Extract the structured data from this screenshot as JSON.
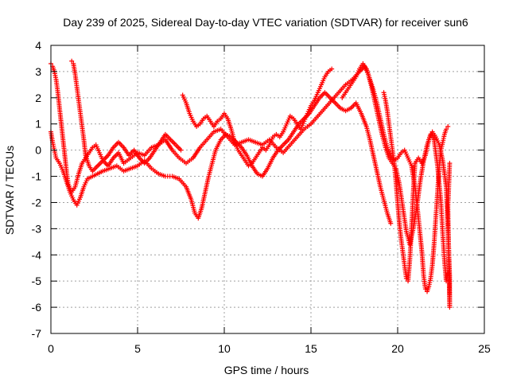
{
  "chart_data": {
    "type": "scatter",
    "title": "Day 239 of 2025, Sidereal Day-to-day VTEC variation (SDTVAR) for receiver sun6",
    "xlabel": "GPS time / hours",
    "ylabel": "SDTVAR / TECUs",
    "xlim": [
      0,
      25
    ],
    "ylim": [
      -7,
      4
    ],
    "xticks": [
      0,
      5,
      10,
      15,
      20,
      25
    ],
    "yticks": [
      -7,
      -6,
      -5,
      -4,
      -3,
      -2,
      -1,
      0,
      1,
      2,
      3,
      4
    ],
    "grid": true,
    "marker": "plus",
    "color": "#ff0000",
    "series": [
      {
        "points": [
          [
            0.0,
            0.7
          ],
          [
            0.1,
            0.3
          ],
          [
            0.2,
            0.0
          ],
          [
            0.3,
            -0.3
          ],
          [
            0.5,
            -0.5
          ],
          [
            0.7,
            -0.8
          ],
          [
            0.9,
            -1.2
          ],
          [
            1.1,
            -1.6
          ],
          [
            1.3,
            -1.9
          ],
          [
            1.5,
            -2.1
          ],
          [
            1.7,
            -1.8
          ],
          [
            1.9,
            -1.4
          ],
          [
            2.1,
            -1.1
          ],
          [
            2.4,
            -1.0
          ],
          [
            2.7,
            -0.9
          ],
          [
            3.0,
            -0.8
          ],
          [
            3.4,
            -0.7
          ],
          [
            3.8,
            -0.6
          ],
          [
            4.2,
            -0.8
          ],
          [
            4.6,
            -0.7
          ],
          [
            5.0,
            -0.6
          ],
          [
            5.4,
            -0.4
          ],
          [
            5.8,
            -0.7
          ],
          [
            6.2,
            -0.9
          ],
          [
            6.6,
            -1.0
          ],
          [
            7.0,
            -1.0
          ],
          [
            7.4,
            -1.1
          ],
          [
            7.8,
            -1.4
          ],
          [
            8.1,
            -1.9
          ],
          [
            8.3,
            -2.4
          ],
          [
            8.5,
            -2.6
          ],
          [
            8.7,
            -2.2
          ],
          [
            8.9,
            -1.6
          ],
          [
            9.1,
            -1.0
          ],
          [
            9.3,
            -0.5
          ],
          [
            9.5,
            0.0
          ],
          [
            9.8,
            0.4
          ],
          [
            10.1,
            0.6
          ],
          [
            10.4,
            0.5
          ],
          [
            10.7,
            0.3
          ],
          [
            11.0,
            0.1
          ],
          [
            11.3,
            -0.2
          ],
          [
            11.6,
            -0.6
          ],
          [
            11.9,
            -0.9
          ],
          [
            12.2,
            -1.0
          ],
          [
            12.5,
            -0.7
          ],
          [
            12.8,
            -0.3
          ],
          [
            13.1,
            0.0
          ],
          [
            13.4,
            0.2
          ],
          [
            13.7,
            0.4
          ],
          [
            14.0,
            0.7
          ],
          [
            14.3,
            1.0
          ],
          [
            14.6,
            1.2
          ],
          [
            14.9,
            1.4
          ],
          [
            15.2,
            1.7
          ],
          [
            15.5,
            2.0
          ],
          [
            15.8,
            2.2
          ],
          [
            16.1,
            2.0
          ],
          [
            16.4,
            1.8
          ],
          [
            16.7,
            1.6
          ],
          [
            17.0,
            1.5
          ],
          [
            17.3,
            1.6
          ],
          [
            17.6,
            1.8
          ],
          [
            17.9,
            1.4
          ],
          [
            18.2,
            0.9
          ],
          [
            18.4,
            0.4
          ],
          [
            18.6,
            -0.2
          ],
          [
            18.8,
            -0.8
          ],
          [
            19.0,
            -1.4
          ],
          [
            19.2,
            -1.9
          ],
          [
            19.4,
            -2.4
          ],
          [
            19.6,
            -2.8
          ]
        ]
      },
      {
        "points": [
          [
            0.0,
            3.3
          ],
          [
            0.1,
            3.2
          ],
          [
            0.2,
            3.0
          ],
          [
            0.3,
            2.7
          ],
          [
            0.4,
            2.2
          ],
          [
            0.5,
            1.6
          ],
          [
            0.6,
            1.0
          ],
          [
            0.7,
            0.4
          ],
          [
            0.8,
            -0.2
          ],
          [
            0.9,
            -0.8
          ],
          [
            1.0,
            -1.3
          ],
          [
            1.2,
            -1.6
          ],
          [
            1.4,
            -1.4
          ],
          [
            1.6,
            -0.9
          ],
          [
            1.8,
            -0.5
          ],
          [
            2.0,
            -0.3
          ],
          [
            2.2,
            -0.1
          ],
          [
            2.4,
            0.1
          ],
          [
            2.6,
            0.2
          ],
          [
            2.8,
            -0.1
          ],
          [
            3.0,
            -0.4
          ],
          [
            3.3,
            -0.6
          ],
          [
            3.6,
            -0.3
          ],
          [
            3.9,
            -0.1
          ],
          [
            4.2,
            -0.5
          ],
          [
            4.6,
            -0.3
          ],
          [
            5.0,
            -0.1
          ],
          [
            5.4,
            -0.2
          ],
          [
            5.8,
            0.1
          ],
          [
            6.2,
            0.2
          ],
          [
            6.6,
            0.4
          ],
          [
            7.0,
            0.0
          ],
          [
            7.4,
            -0.3
          ],
          [
            7.8,
            -0.5
          ],
          [
            8.2,
            -0.3
          ],
          [
            8.6,
            0.1
          ],
          [
            9.0,
            0.4
          ],
          [
            9.4,
            0.7
          ],
          [
            9.8,
            0.8
          ],
          [
            10.2,
            0.5
          ],
          [
            10.6,
            0.2
          ],
          [
            11.0,
            0.3
          ],
          [
            11.4,
            0.4
          ],
          [
            11.8,
            0.3
          ],
          [
            12.2,
            0.2
          ],
          [
            12.6,
            0.4
          ],
          [
            13.0,
            0.1
          ],
          [
            13.4,
            -0.1
          ],
          [
            13.8,
            0.2
          ],
          [
            14.2,
            0.5
          ],
          [
            14.6,
            0.8
          ],
          [
            15.0,
            1.0
          ],
          [
            15.4,
            1.3
          ],
          [
            15.8,
            1.6
          ],
          [
            16.2,
            1.9
          ],
          [
            16.6,
            2.2
          ],
          [
            17.0,
            2.5
          ],
          [
            17.4,
            2.7
          ],
          [
            17.8,
            3.0
          ],
          [
            18.1,
            3.2
          ],
          [
            18.3,
            2.9
          ],
          [
            18.5,
            2.4
          ],
          [
            18.7,
            1.8
          ],
          [
            18.9,
            1.2
          ],
          [
            19.1,
            0.6
          ],
          [
            19.3,
            0.1
          ],
          [
            19.5,
            -0.3
          ],
          [
            19.7,
            -0.5
          ],
          [
            19.9,
            -0.7
          ],
          [
            20.1,
            -1.3
          ],
          [
            20.3,
            -2.2
          ],
          [
            20.5,
            -3.1
          ],
          [
            20.7,
            -3.6
          ],
          [
            20.9,
            -3.0
          ],
          [
            21.1,
            -2.2
          ],
          [
            21.3,
            -1.2
          ],
          [
            21.5,
            -0.4
          ],
          [
            21.7,
            0.2
          ],
          [
            21.9,
            0.6
          ],
          [
            22.1,
            0.4
          ],
          [
            22.3,
            -0.6
          ],
          [
            22.5,
            -2.0
          ],
          [
            22.6,
            -3.2
          ],
          [
            22.7,
            -4.2
          ],
          [
            22.8,
            -5.0
          ],
          [
            22.9,
            -4.7
          ]
        ]
      },
      {
        "points": [
          [
            1.2,
            3.4
          ],
          [
            1.3,
            3.3
          ],
          [
            1.4,
            2.9
          ],
          [
            1.5,
            2.4
          ],
          [
            1.6,
            1.9
          ],
          [
            1.7,
            1.4
          ],
          [
            1.8,
            0.9
          ],
          [
            1.9,
            0.4
          ],
          [
            2.0,
            -0.2
          ],
          [
            2.2,
            -0.6
          ],
          [
            2.4,
            -0.8
          ],
          [
            2.7,
            -0.6
          ],
          [
            3.0,
            -0.4
          ],
          [
            3.3,
            -0.2
          ],
          [
            3.6,
            0.1
          ],
          [
            3.9,
            0.3
          ],
          [
            4.2,
            0.1
          ],
          [
            4.5,
            -0.2
          ],
          [
            4.8,
            0.0
          ],
          [
            5.1,
            -0.3
          ],
          [
            5.4,
            -0.5
          ],
          [
            5.7,
            -0.3
          ],
          [
            6.0,
            0.0
          ],
          [
            6.3,
            0.3
          ],
          [
            6.6,
            0.6
          ],
          [
            6.9,
            0.4
          ],
          [
            7.2,
            0.2
          ],
          [
            7.5,
            0.0
          ]
        ]
      },
      {
        "points": [
          [
            7.6,
            2.1
          ],
          [
            7.8,
            1.8
          ],
          [
            8.0,
            1.4
          ],
          [
            8.2,
            1.1
          ],
          [
            8.4,
            0.9
          ],
          [
            8.6,
            1.0
          ],
          [
            8.8,
            1.2
          ],
          [
            9.0,
            1.3
          ],
          [
            9.2,
            1.1
          ],
          [
            9.4,
            0.9
          ],
          [
            9.6,
            1.1
          ],
          [
            9.8,
            1.2
          ],
          [
            10.0,
            1.4
          ],
          [
            10.2,
            1.2
          ],
          [
            10.4,
            0.8
          ],
          [
            10.6,
            0.3
          ],
          [
            10.8,
            0.0
          ],
          [
            11.0,
            -0.2
          ],
          [
            11.2,
            -0.4
          ],
          [
            11.4,
            -0.6
          ],
          [
            11.6,
            -0.5
          ],
          [
            11.8,
            -0.3
          ],
          [
            12.0,
            -0.1
          ],
          [
            12.2,
            0.1
          ],
          [
            12.4,
            0.0
          ],
          [
            12.6,
            0.2
          ],
          [
            12.8,
            0.5
          ],
          [
            13.0,
            0.6
          ],
          [
            13.2,
            0.5
          ],
          [
            13.4,
            0.7
          ],
          [
            13.6,
            1.0
          ],
          [
            13.8,
            1.3
          ],
          [
            14.0,
            1.2
          ],
          [
            14.2,
            1.0
          ],
          [
            14.4,
            0.8
          ],
          [
            14.6,
            1.1
          ],
          [
            14.8,
            1.4
          ],
          [
            15.0,
            1.7
          ],
          [
            15.2,
            1.9
          ],
          [
            15.4,
            2.2
          ],
          [
            15.6,
            2.5
          ],
          [
            15.8,
            2.8
          ],
          [
            16.0,
            3.0
          ],
          [
            16.2,
            3.1
          ]
        ]
      },
      {
        "points": [
          [
            16.8,
            2.0
          ],
          [
            17.0,
            2.2
          ],
          [
            17.2,
            2.4
          ],
          [
            17.4,
            2.6
          ],
          [
            17.6,
            2.8
          ],
          [
            17.8,
            3.1
          ],
          [
            18.0,
            3.3
          ],
          [
            18.2,
            3.1
          ],
          [
            18.4,
            2.7
          ],
          [
            18.6,
            2.3
          ],
          [
            18.8,
            1.8
          ],
          [
            19.0,
            1.2
          ],
          [
            19.2,
            0.6
          ],
          [
            19.4,
            0.1
          ],
          [
            19.6,
            -0.2
          ],
          [
            19.8,
            -0.4
          ],
          [
            20.0,
            -0.3
          ],
          [
            20.2,
            -0.1
          ],
          [
            20.4,
            0.0
          ],
          [
            20.6,
            -0.3
          ],
          [
            20.8,
            -0.6
          ],
          [
            21.0,
            -1.4
          ],
          [
            21.2,
            -2.6
          ],
          [
            21.4,
            -3.9
          ],
          [
            21.5,
            -4.8
          ],
          [
            21.6,
            -5.3
          ],
          [
            21.7,
            -5.4
          ],
          [
            21.8,
            -5.2
          ],
          [
            21.9,
            -4.9
          ],
          [
            22.0,
            -4.4
          ],
          [
            22.1,
            -3.6
          ],
          [
            22.2,
            -2.6
          ],
          [
            22.3,
            -1.6
          ],
          [
            22.4,
            -0.6
          ],
          [
            22.5,
            0.0
          ],
          [
            22.6,
            0.3
          ],
          [
            22.7,
            0.6
          ],
          [
            22.8,
            0.8
          ],
          [
            22.9,
            0.9
          ]
        ]
      },
      {
        "points": [
          [
            19.2,
            2.2
          ],
          [
            19.3,
            1.9
          ],
          [
            19.4,
            1.5
          ],
          [
            19.5,
            1.0
          ],
          [
            19.6,
            0.5
          ],
          [
            19.7,
            0.0
          ],
          [
            19.8,
            -0.5
          ],
          [
            19.9,
            -1.2
          ],
          [
            20.0,
            -2.0
          ],
          [
            20.1,
            -2.8
          ],
          [
            20.2,
            -3.4
          ],
          [
            20.3,
            -3.9
          ],
          [
            20.4,
            -4.4
          ],
          [
            20.5,
            -4.9
          ],
          [
            20.6,
            -5.0
          ],
          [
            20.7,
            -4.2
          ],
          [
            20.8,
            -3.0
          ],
          [
            20.9,
            -1.6
          ],
          [
            21.0,
            -0.5
          ],
          [
            21.2,
            -0.3
          ],
          [
            21.4,
            -0.5
          ],
          [
            21.6,
            -0.2
          ],
          [
            21.8,
            0.4
          ],
          [
            22.0,
            0.7
          ],
          [
            22.2,
            0.5
          ],
          [
            22.4,
            0.2
          ],
          [
            22.6,
            -0.4
          ],
          [
            22.8,
            -1.4
          ],
          [
            22.9,
            -3.0
          ],
          [
            23.0,
            -4.8
          ],
          [
            23.0,
            -6.0
          ],
          [
            22.9,
            -2.2
          ],
          [
            23.0,
            -0.5
          ]
        ]
      }
    ]
  }
}
